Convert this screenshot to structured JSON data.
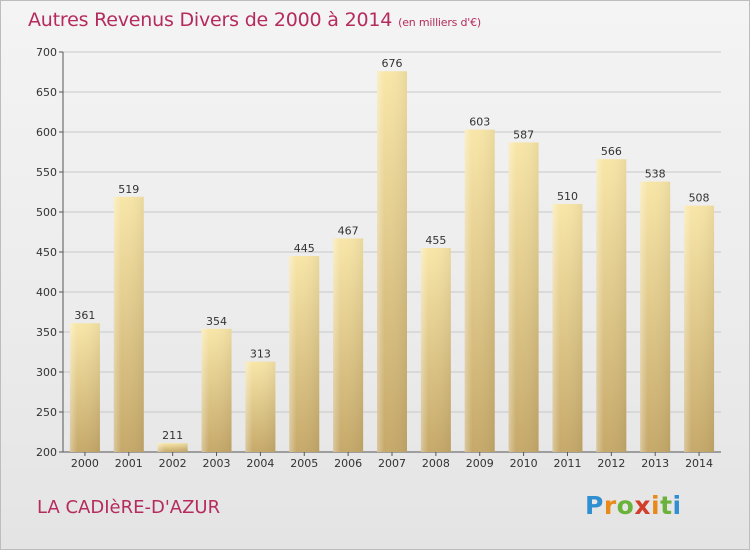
{
  "header": {
    "title": "Autres Revenus Divers de 2000 à 2014",
    "subtitle": "(en milliers d'€)"
  },
  "footer": {
    "city": "LA CADIèRE-D'AZUR",
    "logo": "Proxiti"
  },
  "colors": {
    "title": "#b62b5d",
    "bar_light": "#f7e3a2",
    "bar_dark": "#c8ac6c",
    "grid": "#c8c8c8"
  },
  "chart_data": {
    "type": "bar",
    "title": "Autres Revenus Divers de 2000 à 2014",
    "subtitle": "(en milliers d'€)",
    "xlabel": "",
    "ylabel": "",
    "categories": [
      "2000",
      "2001",
      "2002",
      "2003",
      "2004",
      "2005",
      "2006",
      "2007",
      "2008",
      "2009",
      "2010",
      "2011",
      "2012",
      "2013",
      "2014"
    ],
    "values": [
      361,
      519,
      211,
      354,
      313,
      445,
      467,
      676,
      455,
      603,
      587,
      510,
      566,
      538,
      508
    ],
    "ylim": [
      200,
      700
    ],
    "yticks": [
      200,
      250,
      300,
      350,
      400,
      450,
      500,
      550,
      600,
      650,
      700
    ],
    "grid": true,
    "legend": "none"
  }
}
